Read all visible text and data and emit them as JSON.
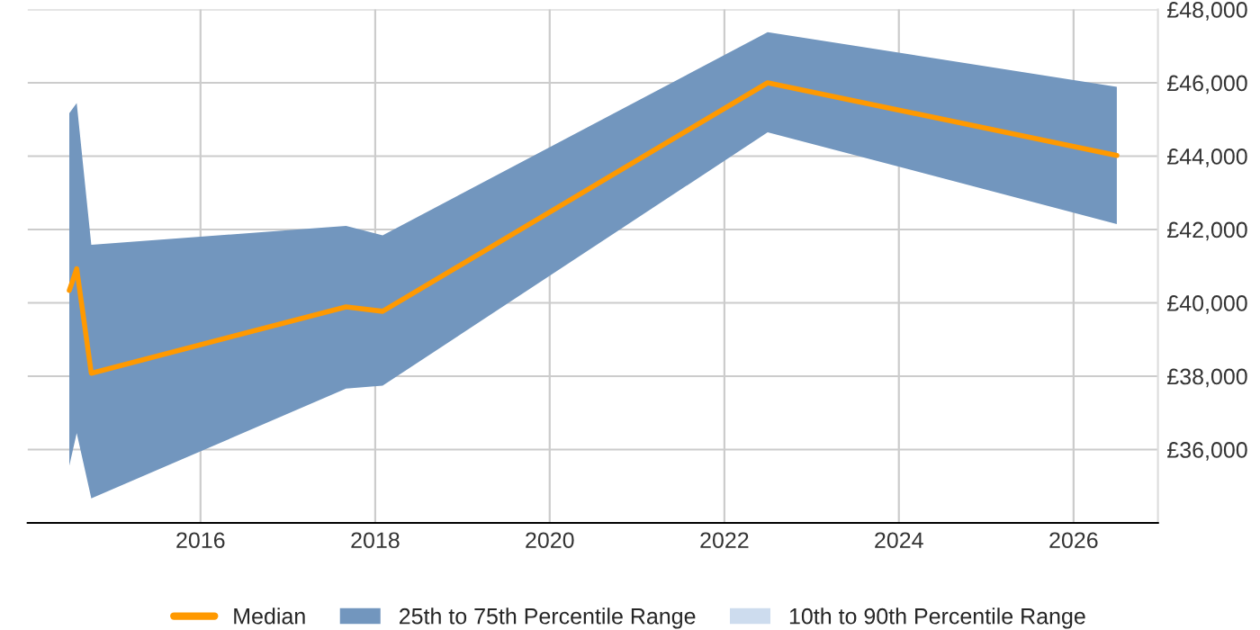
{
  "chart_data": {
    "type": "line",
    "x": [
      "2014-07",
      "2014-08",
      "2014-10",
      "2017-09",
      "2018-02",
      "2022-07",
      "2026-07"
    ],
    "series": [
      {
        "name": "Median",
        "color": "#ff9900",
        "values": [
          40340,
          40930,
          38080,
          39890,
          39770,
          46000,
          44020
        ]
      },
      {
        "name": "25th to 75th Percentile Range",
        "type": "area",
        "color": "#7296be",
        "values": [
          null,
          null,
          null,
          null,
          null,
          null,
          null
        ],
        "lower": [
          35560,
          36450,
          34670,
          37660,
          37740,
          44650,
          42150
        ],
        "upper": [
          45170,
          45450,
          41580,
          42100,
          41840,
          47380,
          45890
        ]
      },
      {
        "name": "10th to 90th Percentile Range",
        "type": "area",
        "color": "#cddcee",
        "values": [
          null,
          null,
          null,
          null,
          null,
          null,
          null
        ],
        "lower": [
          null,
          null,
          null,
          null,
          null,
          null,
          null
        ],
        "upper": [
          null,
          null,
          null,
          null,
          null,
          null,
          null
        ]
      }
    ],
    "xlim": [
      "2014-01-08",
      "2026-12-20"
    ],
    "xticks": [
      "2016",
      "2018",
      "2020",
      "2022",
      "2024",
      "2026"
    ],
    "ylim": [
      34000,
      48000
    ],
    "yticks": [
      {
        "value": 36000,
        "label": "£36,000"
      },
      {
        "value": 38000,
        "label": "£38,000"
      },
      {
        "value": 40000,
        "label": "£40,000"
      },
      {
        "value": 42000,
        "label": "£42,000"
      },
      {
        "value": 44000,
        "label": "£44,000"
      },
      {
        "value": 46000,
        "label": "£46,000"
      },
      {
        "value": 48000,
        "label": "£48,000"
      }
    ],
    "grid": true,
    "legend": "bottom"
  }
}
